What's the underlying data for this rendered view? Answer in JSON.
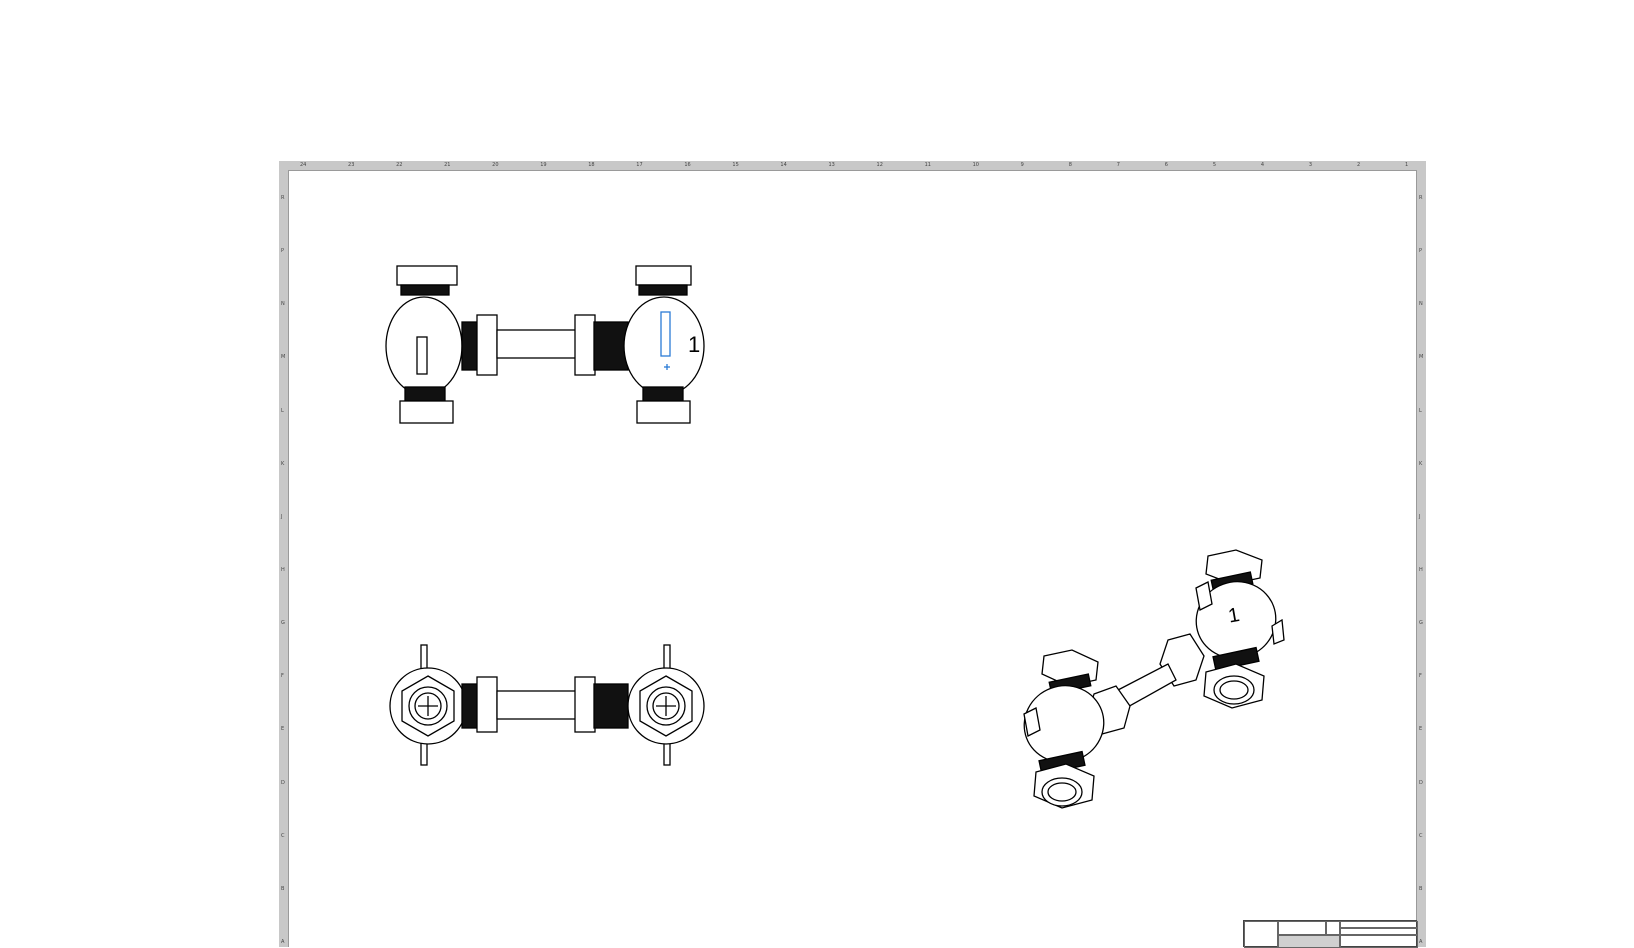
{
  "sheet": {
    "columns": [
      "24",
      "23",
      "22",
      "21",
      "20",
      "19",
      "18",
      "17",
      "16",
      "15",
      "14",
      "13",
      "12",
      "11",
      "10",
      "9",
      "8",
      "7",
      "6",
      "5",
      "4",
      "3",
      "2",
      "1"
    ],
    "rows": [
      "R",
      "P",
      "N",
      "M",
      "L",
      "K",
      "J",
      "H",
      "G",
      "F",
      "E",
      "D",
      "C",
      "B",
      "A"
    ]
  },
  "views": {
    "front": {
      "callout": "1"
    },
    "isometric": {
      "callout": "1"
    }
  },
  "colors": {
    "frame": "#c8c8c8",
    "line": "#000000",
    "highlight": "#2b7bd6"
  }
}
